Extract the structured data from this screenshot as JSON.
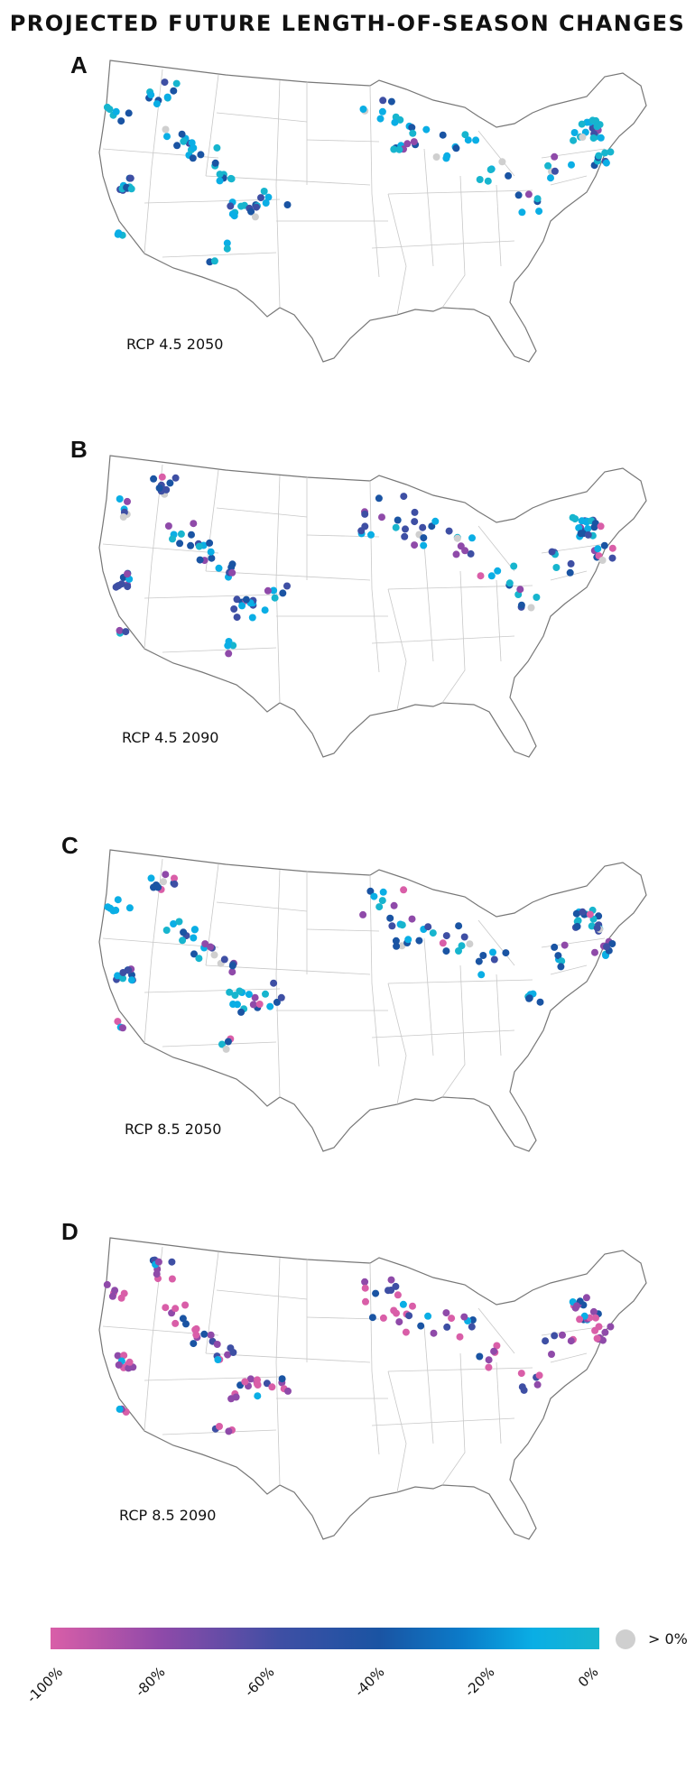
{
  "title": "PROJECTED FUTURE LENGTH-OF-SEASON CHANGES",
  "panels": [
    {
      "letter": "A",
      "label": "RCP 4.5 2050"
    },
    {
      "letter": "B",
      "label": "RCP 4.5 2090"
    },
    {
      "letter": "C",
      "label": "RCP 8.5 2050"
    },
    {
      "letter": "D",
      "label": "RCP 8.5 2090"
    }
  ],
  "legend": {
    "ticks": [
      "-100%",
      "-80%",
      "-60%",
      "-40%",
      "-20%",
      "0%"
    ],
    "gray_label": "> 0%",
    "colors": {
      "minus100": "#d95ea8",
      "minus80": "#8f4aa9",
      "minus60": "#3e4fa4",
      "minus40": "#1a54a3",
      "minus20": "#0aaee5",
      "zero": "#17b5ce",
      "positive": "#cfcfcf"
    }
  }
}
